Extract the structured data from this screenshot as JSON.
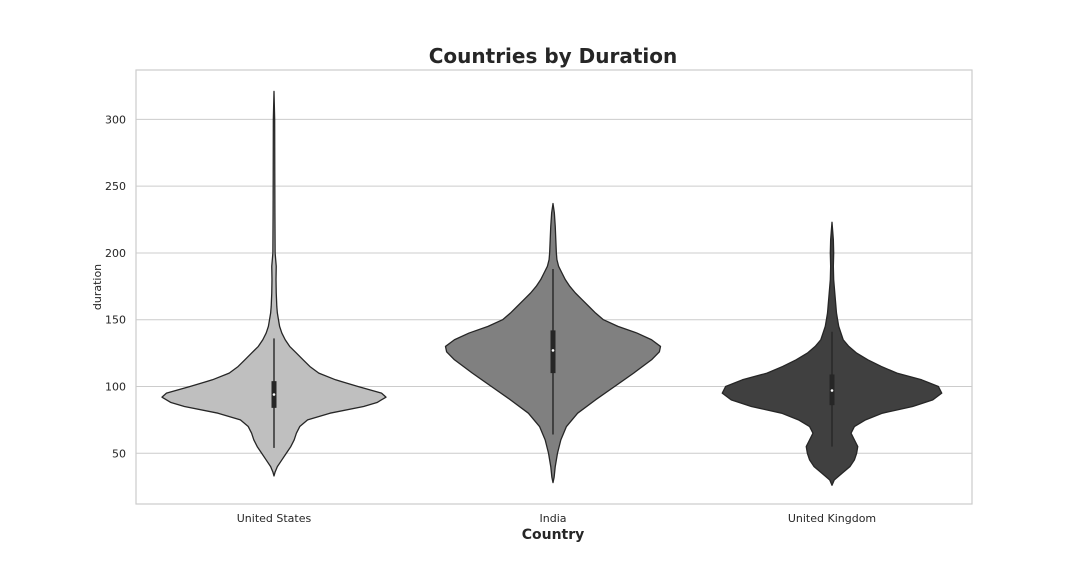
{
  "chart_data": {
    "type": "violin",
    "title": "Countries by Duration",
    "xlabel": "Country",
    "ylabel": "duration",
    "ylim": [
      12,
      337
    ],
    "yticks": [
      50,
      100,
      150,
      200,
      250,
      300
    ],
    "grid": true,
    "categories": [
      "United States",
      "India",
      "United Kingdom"
    ],
    "series": [
      {
        "name": "United States",
        "color": "#bfbfbf",
        "min": 33,
        "max": 321,
        "q1": 84,
        "median": 94,
        "q3": 104,
        "whisker_low": 54,
        "whisker_high": 136,
        "density": [
          [
            33,
            0
          ],
          [
            36,
            0.01
          ],
          [
            40,
            0.03
          ],
          [
            45,
            0.07
          ],
          [
            50,
            0.11
          ],
          [
            55,
            0.15
          ],
          [
            60,
            0.18
          ],
          [
            65,
            0.2
          ],
          [
            70,
            0.23
          ],
          [
            75,
            0.3
          ],
          [
            80,
            0.5
          ],
          [
            85,
            0.8
          ],
          [
            88,
            0.92
          ],
          [
            92,
            1.0
          ],
          [
            95,
            0.96
          ],
          [
            100,
            0.75
          ],
          [
            105,
            0.55
          ],
          [
            110,
            0.4
          ],
          [
            115,
            0.32
          ],
          [
            120,
            0.26
          ],
          [
            125,
            0.2
          ],
          [
            130,
            0.14
          ],
          [
            135,
            0.1
          ],
          [
            140,
            0.07
          ],
          [
            145,
            0.05
          ],
          [
            150,
            0.04
          ],
          [
            155,
            0.03
          ],
          [
            160,
            0.025
          ],
          [
            170,
            0.02
          ],
          [
            180,
            0.018
          ],
          [
            190,
            0.02
          ],
          [
            195,
            0.015
          ],
          [
            200,
            0.01
          ],
          [
            230,
            0.008
          ],
          [
            260,
            0.007
          ],
          [
            300,
            0.006
          ],
          [
            321,
            0
          ]
        ]
      },
      {
        "name": "India",
        "color": "#808080",
        "min": 28,
        "max": 237,
        "q1": 110,
        "median": 127,
        "q3": 142,
        "whisker_low": 64,
        "whisker_high": 188,
        "density": [
          [
            28,
            0
          ],
          [
            32,
            0.01
          ],
          [
            40,
            0.02
          ],
          [
            50,
            0.04
          ],
          [
            60,
            0.07
          ],
          [
            70,
            0.12
          ],
          [
            80,
            0.22
          ],
          [
            90,
            0.38
          ],
          [
            100,
            0.55
          ],
          [
            110,
            0.72
          ],
          [
            120,
            0.88
          ],
          [
            126,
            0.95
          ],
          [
            130,
            0.96
          ],
          [
            135,
            0.88
          ],
          [
            140,
            0.75
          ],
          [
            145,
            0.58
          ],
          [
            150,
            0.45
          ],
          [
            155,
            0.38
          ],
          [
            160,
            0.32
          ],
          [
            165,
            0.26
          ],
          [
            170,
            0.2
          ],
          [
            175,
            0.15
          ],
          [
            180,
            0.11
          ],
          [
            185,
            0.08
          ],
          [
            190,
            0.05
          ],
          [
            195,
            0.035
          ],
          [
            200,
            0.03
          ],
          [
            210,
            0.025
          ],
          [
            220,
            0.02
          ],
          [
            230,
            0.012
          ],
          [
            237,
            0
          ]
        ]
      },
      {
        "name": "United Kingdom",
        "color": "#404040",
        "min": 26,
        "max": 223,
        "q1": 86,
        "median": 97,
        "q3": 109,
        "whisker_low": 55,
        "whisker_high": 141,
        "density": [
          [
            26,
            0
          ],
          [
            30,
            0.02
          ],
          [
            35,
            0.09
          ],
          [
            40,
            0.16
          ],
          [
            45,
            0.2
          ],
          [
            50,
            0.22
          ],
          [
            55,
            0.23
          ],
          [
            60,
            0.2
          ],
          [
            65,
            0.17
          ],
          [
            70,
            0.2
          ],
          [
            75,
            0.3
          ],
          [
            80,
            0.45
          ],
          [
            85,
            0.72
          ],
          [
            90,
            0.9
          ],
          [
            95,
            0.98
          ],
          [
            100,
            0.95
          ],
          [
            105,
            0.8
          ],
          [
            110,
            0.58
          ],
          [
            115,
            0.44
          ],
          [
            120,
            0.32
          ],
          [
            125,
            0.22
          ],
          [
            130,
            0.15
          ],
          [
            135,
            0.1
          ],
          [
            140,
            0.08
          ],
          [
            145,
            0.06
          ],
          [
            150,
            0.05
          ],
          [
            155,
            0.04
          ],
          [
            160,
            0.035
          ],
          [
            170,
            0.025
          ],
          [
            180,
            0.015
          ],
          [
            190,
            0.012
          ],
          [
            200,
            0.015
          ],
          [
            210,
            0.012
          ],
          [
            223,
            0
          ]
        ]
      }
    ]
  }
}
